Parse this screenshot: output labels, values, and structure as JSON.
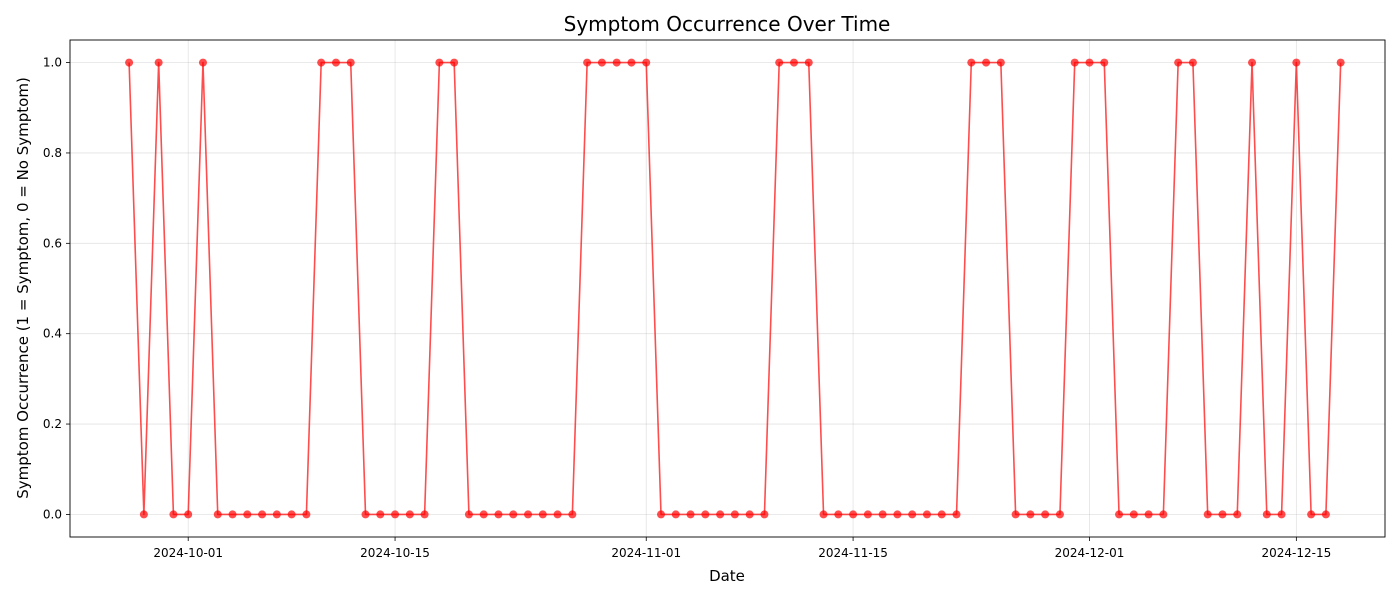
{
  "chart_data": {
    "type": "line",
    "title": "Symptom Occurrence Over Time",
    "xlabel": "Date",
    "ylabel": "Symptom Occurrence (1 = Symptom, 0 = No Symptom)",
    "x_start_date": "2024-09-27",
    "x_interval_days": 1,
    "xlim": [
      "2024-09-23",
      "2024-12-21"
    ],
    "ylim": [
      -0.05,
      1.05
    ],
    "x_ticks": [
      "2024-10-01",
      "2024-10-15",
      "2024-11-01",
      "2024-11-15",
      "2024-12-01",
      "2024-12-15"
    ],
    "y_ticks": [
      "0.0",
      "0.2",
      "0.4",
      "0.6",
      "0.8",
      "1.0"
    ],
    "grid": true,
    "series": [
      {
        "color": "#ff0000",
        "values": [
          1,
          0,
          1,
          0,
          0,
          1,
          0,
          0,
          0,
          0,
          0,
          0,
          0,
          1,
          1,
          1,
          0,
          0,
          0,
          0,
          0,
          1,
          1,
          0,
          0,
          0,
          0,
          0,
          0,
          0,
          0,
          1,
          1,
          1,
          1,
          1,
          0,
          0,
          0,
          0,
          0,
          0,
          0,
          0,
          1,
          1,
          1,
          0,
          0,
          0,
          0,
          0,
          0,
          0,
          0,
          0,
          0,
          1,
          1,
          1,
          0,
          0,
          0,
          0,
          1,
          1,
          1,
          0,
          0,
          0,
          0,
          1,
          1,
          0,
          0,
          0,
          1,
          0,
          0,
          1,
          0,
          0,
          1
        ]
      }
    ]
  }
}
